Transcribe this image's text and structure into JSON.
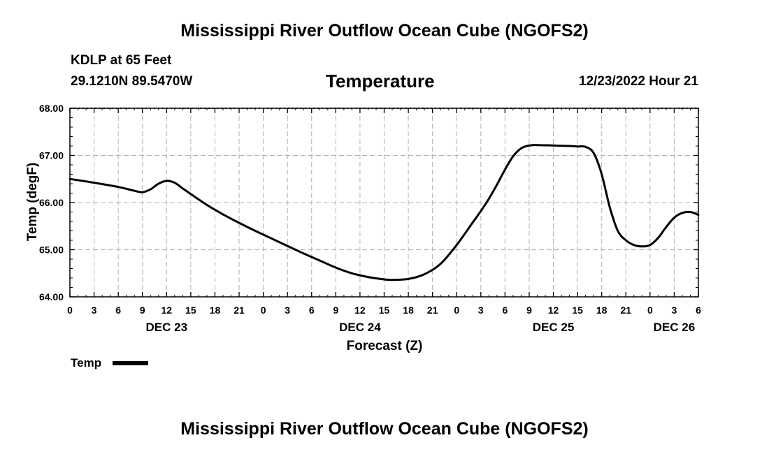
{
  "page": {
    "title": "Mississippi River Outflow Ocean Cube (NGOFS2)",
    "footer_title": "Mississippi River Outflow Ocean Cube (NGOFS2)"
  },
  "station": {
    "name_line": "KDLP at 65 Feet",
    "coords_line": "29.1210N  89.5470W",
    "timestamp": "12/23/2022 Hour 21"
  },
  "colors": {
    "line": "#000000",
    "grid": "#b0b0b0",
    "background": "#ffffff"
  },
  "chart_data": {
    "type": "line",
    "title": "Temperature",
    "xlabel": "Forecast (Z)",
    "ylabel": "Temp (degF)",
    "ylim": [
      64.0,
      68.0
    ],
    "yticks": [
      "64.00",
      "65.00",
      "66.00",
      "67.00",
      "68.00"
    ],
    "xlim_hours": [
      0,
      78
    ],
    "xtick_labels": [
      "0",
      "3",
      "6",
      "9",
      "12",
      "15",
      "18",
      "21",
      "0",
      "3",
      "6",
      "9",
      "12",
      "15",
      "18",
      "21",
      "0",
      "3",
      "6",
      "9",
      "12",
      "15",
      "18",
      "21",
      "0",
      "3",
      "6"
    ],
    "day_labels": [
      {
        "label": "DEC 23",
        "hour": 12
      },
      {
        "label": "DEC 24",
        "hour": 36
      },
      {
        "label": "DEC 25",
        "hour": 60
      },
      {
        "label": "DEC 26",
        "hour": 75
      }
    ],
    "grid": true,
    "legend": [
      {
        "name": "Temp",
        "position": "bottom-left"
      }
    ],
    "series": [
      {
        "name": "Temp",
        "x": [
          0,
          3,
          6,
          8,
          9,
          10,
          11,
          12,
          13,
          14,
          15,
          17,
          19,
          21,
          23,
          25,
          27,
          29,
          31,
          33,
          35,
          37,
          39,
          40,
          42,
          44,
          46,
          48,
          50,
          51,
          52,
          53,
          54,
          55,
          56,
          57,
          58,
          60,
          62,
          63,
          64,
          65,
          66,
          67,
          68,
          69,
          70,
          71,
          72,
          73,
          74,
          75,
          76,
          77,
          78
        ],
        "y": [
          66.5,
          66.42,
          66.33,
          66.25,
          66.22,
          66.28,
          66.4,
          66.46,
          66.42,
          66.3,
          66.18,
          65.95,
          65.75,
          65.57,
          65.4,
          65.24,
          65.08,
          64.92,
          64.77,
          64.62,
          64.5,
          64.42,
          64.37,
          64.36,
          64.38,
          64.48,
          64.7,
          65.1,
          65.58,
          65.82,
          66.08,
          66.38,
          66.7,
          66.98,
          67.15,
          67.21,
          67.22,
          67.21,
          67.2,
          67.19,
          67.18,
          67.05,
          66.6,
          65.9,
          65.4,
          65.2,
          65.1,
          65.07,
          65.1,
          65.25,
          65.48,
          65.68,
          65.78,
          65.8,
          65.74
        ]
      }
    ]
  }
}
